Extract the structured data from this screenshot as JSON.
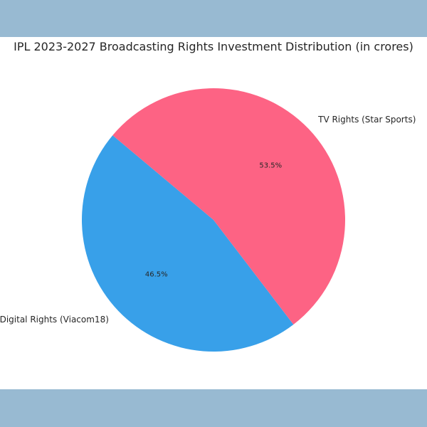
{
  "colors": {
    "band": "#98bad2",
    "background": "#ffffff",
    "text": "#262626"
  },
  "chart_data": {
    "type": "pie",
    "title": "IPL 2023-2027 Broadcasting Rights Investment Distribution (in crores)",
    "slices": [
      {
        "label": "Digital Rights (Viacom18)",
        "value": 46.5,
        "pct_label": "46.5%",
        "color": "#38a0e9"
      },
      {
        "label": "TV Rights (Star Sports)",
        "value": 53.5,
        "pct_label": "53.5%",
        "color": "#fd6384"
      }
    ],
    "legend": "none"
  }
}
